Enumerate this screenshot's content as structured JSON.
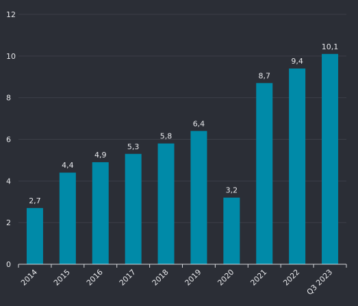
{
  "chart_data": {
    "type": "bar",
    "title": "",
    "xlabel": "",
    "ylabel": "",
    "categories": [
      "2014",
      "2015",
      "2016",
      "2017",
      "2018",
      "2019",
      "2020",
      "2021",
      "2022",
      "Q3 2023"
    ],
    "values": [
      2.7,
      4.4,
      4.9,
      5.3,
      5.8,
      6.4,
      3.2,
      8.7,
      9.4,
      10.1
    ],
    "data_labels": [
      "2,7",
      "4,4",
      "4,9",
      "5,3",
      "5,8",
      "6,4",
      "3,2",
      "8,7",
      "9,4",
      "10,1"
    ],
    "ylim": [
      0,
      12
    ],
    "yticks": [
      0,
      2,
      4,
      6,
      8,
      10,
      12
    ],
    "grid": true,
    "legend": "none",
    "colors": {
      "bar": "#008aa8",
      "background": "#2b2e36",
      "text": "#e8e9ec"
    }
  }
}
